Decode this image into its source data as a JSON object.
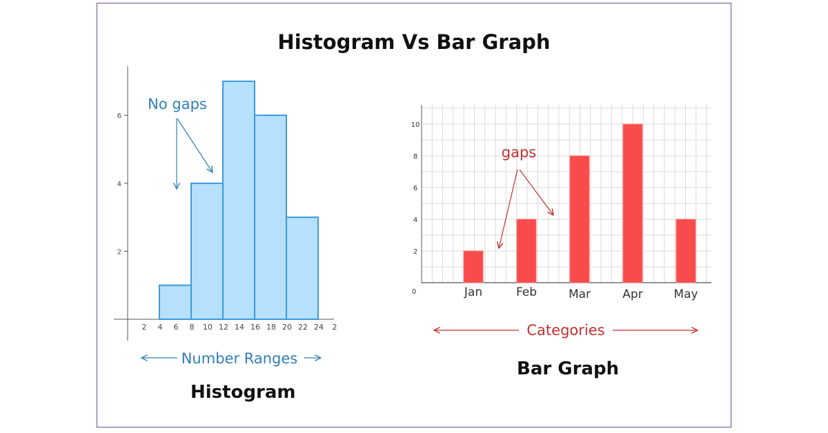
{
  "title": "Histogram Vs Bar Graph",
  "chart_data": [
    {
      "type": "bar",
      "caption": "Histogram",
      "x_ticks": [
        "2",
        "4",
        "6",
        "8",
        "10",
        "12",
        "14",
        "16",
        "18",
        "20",
        "22",
        "24",
        "2"
      ],
      "y_ticks": [
        "2",
        "4",
        "6"
      ],
      "bins": [
        {
          "start": 4,
          "end": 8,
          "value": 1
        },
        {
          "start": 8,
          "end": 12,
          "value": 4
        },
        {
          "start": 12,
          "end": 16,
          "value": 7
        },
        {
          "start": 16,
          "end": 20,
          "value": 6
        },
        {
          "start": 20,
          "end": 24,
          "value": 3
        }
      ],
      "ylim": [
        0,
        7.3
      ],
      "annotation": "No gaps",
      "xlabel": "Number Ranges",
      "ylabel": "",
      "grid": false,
      "colors": {
        "fill": "#b6e0fb",
        "stroke": "#3a9ad9",
        "annotation": "#2f7fb5"
      }
    },
    {
      "type": "bar",
      "caption": "Bar Graph",
      "categories": [
        "Jan",
        "Feb",
        "Mar",
        "Apr",
        "May"
      ],
      "values": [
        2,
        4,
        8,
        10,
        4
      ],
      "y_ticks": [
        "0",
        "2",
        "4",
        "6",
        "8",
        "10"
      ],
      "ylim": [
        0,
        11
      ],
      "annotation": "gaps",
      "xlabel": "Categories",
      "ylabel": "",
      "grid": true,
      "colors": {
        "fill": "#f94b4b",
        "annotation": "#c0312f",
        "grid": "#d9d9d9"
      }
    }
  ]
}
